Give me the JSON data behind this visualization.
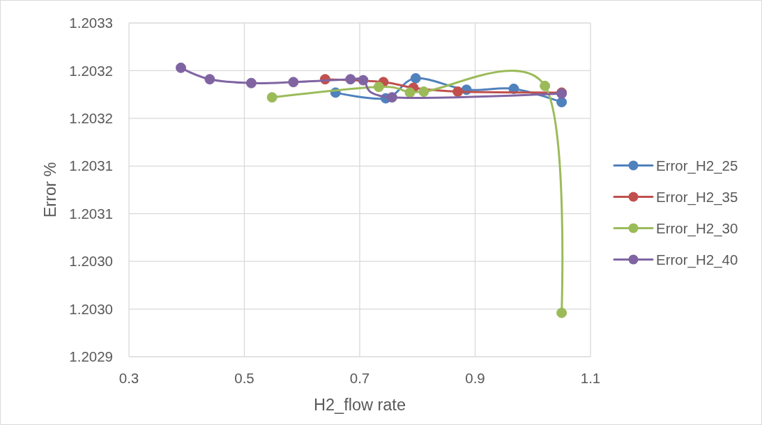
{
  "chart_data": {
    "type": "line",
    "xlabel": "H2_flow rate",
    "ylabel": "Error %",
    "xlim": [
      0.3,
      1.1
    ],
    "xticks": [
      0.3,
      0.5,
      0.7,
      0.9,
      1.1
    ],
    "ylim": [
      1.20295,
      1.2033
    ],
    "yticks": [
      1.2033,
      {
        "value": 1.20325,
        "label": "1.2032"
      },
      1.2032,
      {
        "value": 1.20315,
        "label": "1.2031"
      },
      1.2031,
      {
        "value": 1.20305,
        "label": "1.2030"
      },
      {
        "value": 1.203,
        "label": "1.2030"
      },
      {
        "value": 1.20295,
        "label": "1.2029"
      }
    ],
    "grid": true,
    "legend": "right",
    "marker": "circle",
    "line_style": "solid",
    "series": [
      {
        "name": "Error_H2_25",
        "color": "#4f81bd",
        "x": [
          0.658,
          0.745,
          0.797,
          0.885,
          0.967,
          1.05
        ],
        "values": [
          1.203227,
          1.203221,
          1.203242,
          1.20323,
          1.203231,
          1.203217
        ]
      },
      {
        "name": "Error_H2_35",
        "color": "#c0504d",
        "x": [
          0.64,
          0.741,
          0.793,
          0.87,
          1.05
        ],
        "values": [
          1.203241,
          1.203238,
          1.203232,
          1.203228,
          1.203227
        ]
      },
      {
        "name": "Error_H2_30",
        "color": "#9bbb59",
        "x": [
          0.548,
          0.733,
          0.787,
          0.811,
          1.021,
          1.05
        ],
        "values": [
          1.203222,
          1.203233,
          1.203227,
          1.203228,
          1.203234,
          1.202996
        ]
      },
      {
        "name": "Error_H2_40",
        "color": "#8064a2",
        "x": [
          0.39,
          0.44,
          0.512,
          0.585,
          0.684,
          0.706,
          0.756,
          1.05
        ],
        "values": [
          1.203253,
          1.203241,
          1.203237,
          1.203238,
          1.203241,
          1.20324,
          1.203222,
          1.203226
        ]
      }
    ]
  }
}
